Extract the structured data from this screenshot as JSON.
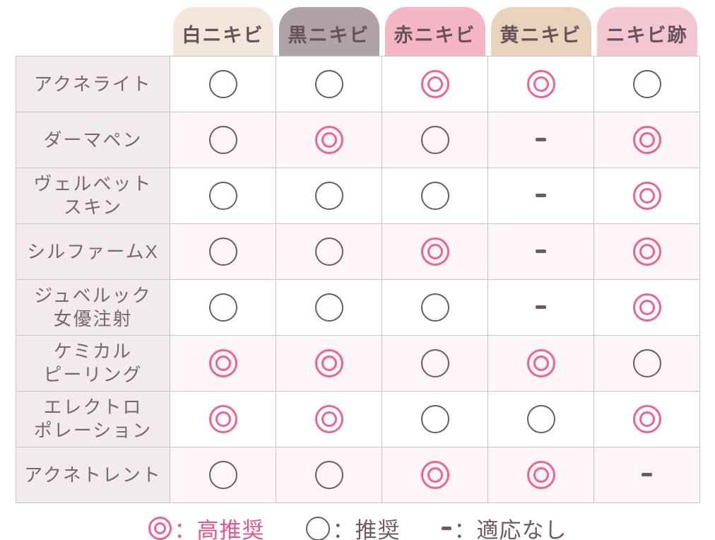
{
  "table": {
    "columns": [
      {
        "key": "white-acne",
        "label": "白ニキビ",
        "color": "#f3e6da"
      },
      {
        "key": "black-acne",
        "label": "黒ニキビ",
        "color": "#b1a2a8"
      },
      {
        "key": "red-acne",
        "label": "赤ニキビ",
        "color": "#f4b6c4"
      },
      {
        "key": "yellow-acne",
        "label": "黄ニキビ",
        "color": "#ead3bd"
      },
      {
        "key": "acne-scars",
        "label": "ニキビ跡",
        "color": "#f2c7d1"
      }
    ],
    "rows": [
      {
        "label": "アクネライト",
        "cells": [
          "○",
          "○",
          "◎",
          "◎",
          "○"
        ]
      },
      {
        "label": "ダーマペン",
        "cells": [
          "○",
          "◎",
          "○",
          "-",
          "◎"
        ]
      },
      {
        "label": "ヴェルベット\nスキン",
        "cells": [
          "○",
          "○",
          "○",
          "-",
          "◎"
        ]
      },
      {
        "label": "シルファームX",
        "cells": [
          "○",
          "○",
          "◎",
          "-",
          "◎"
        ]
      },
      {
        "label": "ジュベルック\n女優注射",
        "cells": [
          "○",
          "○",
          "○",
          "-",
          "◎"
        ]
      },
      {
        "label": "ケミカル\nピーリング",
        "cells": [
          "◎",
          "◎",
          "○",
          "◎",
          "○"
        ]
      },
      {
        "label": "エレクトロ\nポレーション",
        "cells": [
          "◎",
          "◎",
          "○",
          "○",
          "◎"
        ]
      },
      {
        "label": "アクネトレント",
        "cells": [
          "○",
          "○",
          "◎",
          "◎",
          "-"
        ]
      }
    ]
  },
  "legend": {
    "items": [
      {
        "symbol": "◎",
        "label": "：高推奨",
        "color": "#e8538a"
      },
      {
        "symbol": "○",
        "label": "：推奨",
        "color": "#6e5a60"
      },
      {
        "symbol": "-",
        "label": "：適応なし",
        "color": "#6e5a60"
      }
    ]
  },
  "colors": {
    "page_bg": "#ffffff",
    "grid_line": "#cbc3c5",
    "row_alt_bg": "#fdf5f8",
    "label_col_bg": "#f1ebed",
    "label_text": "#7c666c",
    "header_text": "#665258",
    "single_circle": "#6e5a60",
    "double_circle": "#ee6390",
    "dash": "#6e5a60"
  }
}
